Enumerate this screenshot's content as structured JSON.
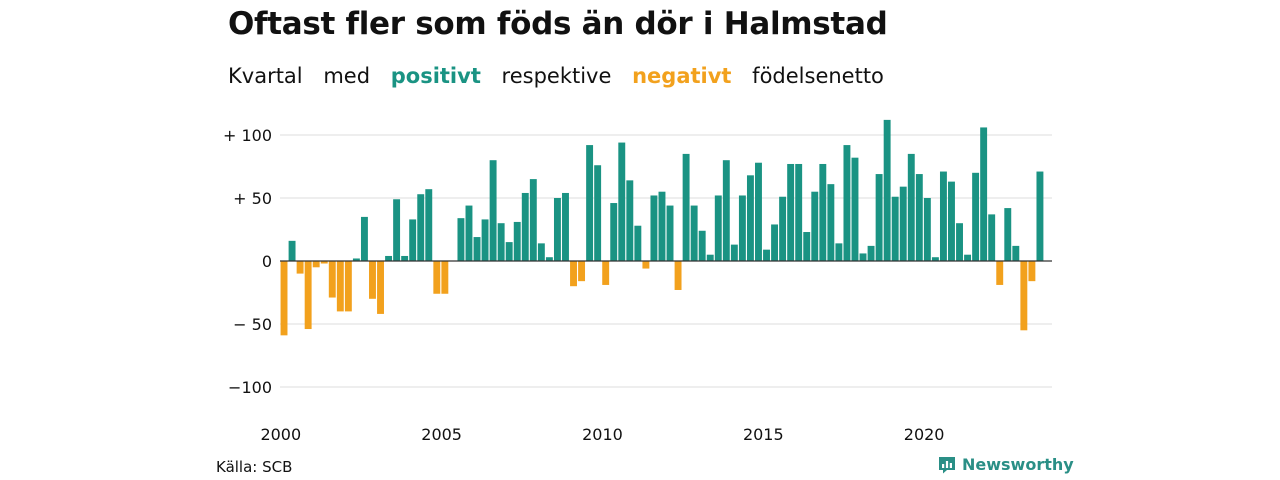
{
  "title": "Oftast fler som föds än dör i Halmstad",
  "subtitle": {
    "part1": "Kvartal",
    "part2": "med",
    "positive": "positivt",
    "part3": "respektive",
    "negative": "negativt",
    "part4": "födelsenetto"
  },
  "colors": {
    "positive": "#1a9383",
    "negative": "#f2a11d",
    "grid": "#dddddd",
    "baseline": "#333333"
  },
  "source": "Källa: SCB",
  "brand": {
    "name": "Newsworthy",
    "icon": "newsworthy-logo-icon"
  },
  "chart_data": {
    "type": "bar",
    "title": "",
    "xlabel": "",
    "ylabel": "",
    "ylim": [
      -100,
      100
    ],
    "y_ticks": [
      100,
      50,
      0,
      -50,
      -100
    ],
    "y_tick_labels": [
      "+ 100",
      "+  50",
      "0",
      "− 50",
      "−100"
    ],
    "x_start_year": 2000,
    "x_ticks": [
      2000,
      2005,
      2010,
      2015,
      2020
    ],
    "x_tick_labels": [
      "2000",
      "2005",
      "2010",
      "2015",
      "2020"
    ],
    "grid": true,
    "categories": [
      "2000Q1",
      "2000Q2",
      "2000Q3",
      "2000Q4",
      "2001Q1",
      "2001Q2",
      "2001Q3",
      "2001Q4",
      "2002Q1",
      "2002Q2",
      "2002Q3",
      "2002Q4",
      "2003Q1",
      "2003Q2",
      "2003Q3",
      "2003Q4",
      "2004Q1",
      "2004Q2",
      "2004Q3",
      "2004Q4",
      "2005Q1",
      "2005Q2",
      "2005Q3",
      "2005Q4",
      "2006Q1",
      "2006Q2",
      "2006Q3",
      "2006Q4",
      "2007Q1",
      "2007Q2",
      "2007Q3",
      "2007Q4",
      "2008Q1",
      "2008Q2",
      "2008Q3",
      "2008Q4",
      "2009Q1",
      "2009Q2",
      "2009Q3",
      "2009Q4",
      "2010Q1",
      "2010Q2",
      "2010Q3",
      "2010Q4",
      "2011Q1",
      "2011Q2",
      "2011Q3",
      "2011Q4",
      "2012Q1",
      "2012Q2",
      "2012Q3",
      "2012Q4",
      "2013Q1",
      "2013Q2",
      "2013Q3",
      "2013Q4",
      "2014Q1",
      "2014Q2",
      "2014Q3",
      "2014Q4",
      "2015Q1",
      "2015Q2",
      "2015Q3",
      "2015Q4",
      "2016Q1",
      "2016Q2",
      "2016Q3",
      "2016Q4",
      "2017Q1",
      "2017Q2",
      "2017Q3",
      "2017Q4",
      "2018Q1",
      "2018Q2",
      "2018Q3",
      "2018Q4",
      "2019Q1",
      "2019Q2",
      "2019Q3",
      "2019Q4",
      "2020Q1",
      "2020Q2",
      "2020Q3",
      "2020Q4",
      "2021Q1",
      "2021Q2",
      "2021Q3",
      "2021Q4",
      "2022Q1",
      "2022Q2",
      "2022Q3",
      "2022Q4",
      "2023Q1",
      "2023Q2",
      "2023Q3",
      "2023Q4"
    ],
    "values": [
      -59,
      16,
      -10,
      -54,
      -5,
      -2,
      -29,
      -40,
      -40,
      2,
      35,
      -30,
      -42,
      4,
      49,
      4,
      33,
      53,
      57,
      -26,
      -26,
      0,
      34,
      44,
      19,
      33,
      80,
      30,
      15,
      31,
      54,
      65,
      14,
      3,
      50,
      54,
      -20,
      -16,
      92,
      76,
      -19,
      46,
      94,
      64,
      28,
      -6,
      52,
      55,
      44,
      -23,
      85,
      44,
      24,
      5,
      52,
      80,
      13,
      52,
      68,
      78,
      9,
      29,
      51,
      77,
      77,
      23,
      55,
      77,
      61,
      14,
      92,
      82,
      6,
      12,
      69,
      112,
      51,
      59,
      85,
      69,
      50,
      3,
      71,
      63,
      30,
      5,
      70,
      106,
      37,
      -19,
      42,
      12,
      -55,
      -16,
      71,
      0
    ]
  }
}
